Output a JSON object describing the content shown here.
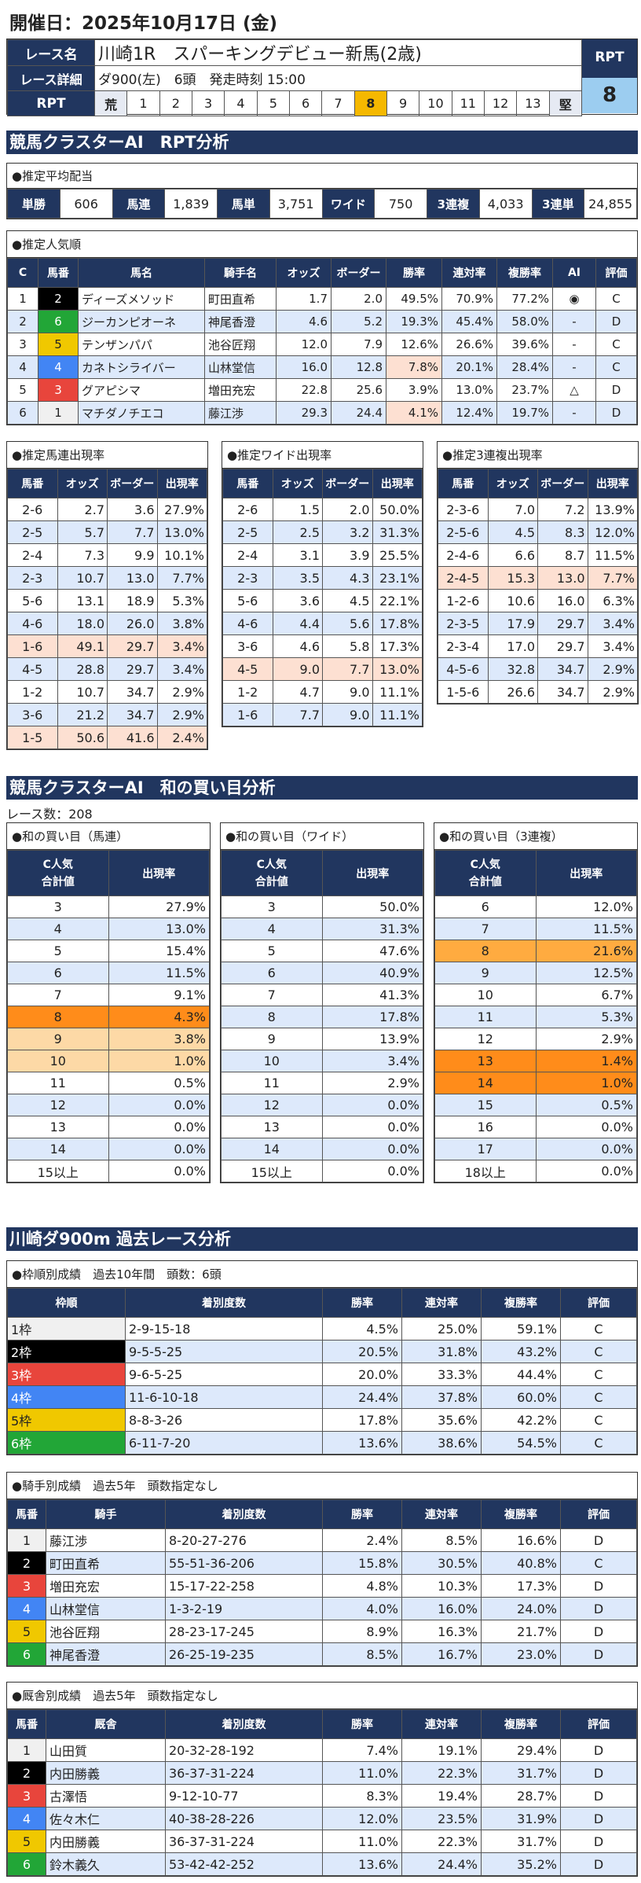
{
  "header": {
    "date": "開催日：2025年10月17日 (金)"
  },
  "race": {
    "name_label": "レース名",
    "name": "川崎1R　スパーキングデビュー新馬(2歳)",
    "detail_label": "レース詳細",
    "detail": "ダ900(左)　6頭　発走時刻 15:00",
    "rpt_label": "RPT",
    "scale": [
      "荒",
      "1",
      "2",
      "3",
      "4",
      "5",
      "6",
      "7",
      "8",
      "9",
      "10",
      "11",
      "12",
      "13",
      "堅"
    ],
    "rpt_selected": "8",
    "rpt_box_label": "RPT",
    "rpt_value": "8"
  },
  "sec1": {
    "title": "競馬クラスターAI　RPT分析"
  },
  "payout": {
    "title": "●推定平均配当",
    "items": [
      {
        "k": "単勝",
        "v": "606"
      },
      {
        "k": "馬連",
        "v": "1,839"
      },
      {
        "k": "馬単",
        "v": "3,751"
      },
      {
        "k": "ワイド",
        "v": "750"
      },
      {
        "k": "3連複",
        "v": "4,033"
      },
      {
        "k": "3連単",
        "v": "24,855"
      }
    ]
  },
  "popularity": {
    "title": "●推定人気順",
    "headers": [
      "C",
      "馬番",
      "馬名",
      "騎手名",
      "オッズ",
      "ボーダー",
      "勝率",
      "連対率",
      "複勝率",
      "AI",
      "評価"
    ],
    "rows": [
      [
        "1",
        "2",
        "ディーズメソッド",
        "町田直希",
        "1.7",
        "2.0",
        "49.5%",
        "70.9%",
        "77.2%",
        "◉",
        "C"
      ],
      [
        "2",
        "6",
        "ジーカンピオーネ",
        "神尾香澄",
        "4.6",
        "5.2",
        "19.3%",
        "45.4%",
        "58.0%",
        "-",
        "D"
      ],
      [
        "3",
        "5",
        "テンザンパパ",
        "池谷匠翔",
        "12.0",
        "7.9",
        "12.6%",
        "26.6%",
        "39.6%",
        "-",
        "C"
      ],
      [
        "4",
        "4",
        "カネトシライバー",
        "山林堂信",
        "16.0",
        "12.8",
        "7.8%",
        "20.1%",
        "28.4%",
        "-",
        "C"
      ],
      [
        "5",
        "3",
        "グアピシマ",
        "増田充宏",
        "22.8",
        "25.6",
        "3.9%",
        "13.0%",
        "23.7%",
        "△",
        "D"
      ],
      [
        "6",
        "1",
        "マチダノチエコ",
        "藤江渉",
        "29.3",
        "24.4",
        "4.1%",
        "12.4%",
        "19.7%",
        "-",
        "D"
      ]
    ],
    "salmon_win_rows": [
      3,
      5
    ]
  },
  "frame_colors": {
    "1": "#f0f0f0",
    "2": "#000000",
    "3": "#e8453c",
    "4": "#4285f4",
    "5": "#f0c800",
    "6": "#22a637"
  },
  "combo_tables": [
    {
      "title": "●推定馬連出現率",
      "headers": [
        "馬番",
        "オッズ",
        "ボーダー",
        "出現率"
      ],
      "rows": [
        [
          "2-6",
          "2.7",
          "3.6",
          "27.9%"
        ],
        [
          "2-5",
          "5.7",
          "7.7",
          "13.0%"
        ],
        [
          "2-4",
          "7.3",
          "9.9",
          "10.1%"
        ],
        [
          "2-3",
          "10.7",
          "13.0",
          "7.7%"
        ],
        [
          "5-6",
          "13.1",
          "18.9",
          "5.3%"
        ],
        [
          "4-6",
          "18.0",
          "26.0",
          "3.8%"
        ],
        [
          "1-6",
          "49.1",
          "29.7",
          "3.4%",
          "salmon"
        ],
        [
          "4-5",
          "28.8",
          "29.7",
          "3.4%"
        ],
        [
          "1-2",
          "10.7",
          "34.7",
          "2.9%"
        ],
        [
          "3-6",
          "21.2",
          "34.7",
          "2.9%"
        ],
        [
          "1-5",
          "50.6",
          "41.6",
          "2.4%",
          "salmon"
        ]
      ]
    },
    {
      "title": "●推定ワイド出現率",
      "headers": [
        "馬番",
        "オッズ",
        "ボーダー",
        "出現率"
      ],
      "rows": [
        [
          "2-6",
          "1.5",
          "2.0",
          "50.0%"
        ],
        [
          "2-5",
          "2.5",
          "3.2",
          "31.3%"
        ],
        [
          "2-4",
          "3.1",
          "3.9",
          "25.5%"
        ],
        [
          "2-3",
          "3.5",
          "4.3",
          "23.1%"
        ],
        [
          "5-6",
          "3.6",
          "4.5",
          "22.1%"
        ],
        [
          "4-6",
          "4.4",
          "5.6",
          "17.8%"
        ],
        [
          "3-6",
          "4.6",
          "5.8",
          "17.3%"
        ],
        [
          "4-5",
          "9.0",
          "7.7",
          "13.0%",
          "salmon"
        ],
        [
          "1-2",
          "4.7",
          "9.0",
          "11.1%"
        ],
        [
          "1-6",
          "7.7",
          "9.0",
          "11.1%"
        ]
      ]
    },
    {
      "title": "●推定3連複出現率",
      "headers": [
        "馬番",
        "オッズ",
        "ボーダー",
        "出現率"
      ],
      "rows": [
        [
          "2-3-6",
          "7.0",
          "7.2",
          "13.9%"
        ],
        [
          "2-5-6",
          "4.5",
          "8.3",
          "12.0%"
        ],
        [
          "2-4-6",
          "6.6",
          "8.7",
          "11.5%"
        ],
        [
          "2-4-5",
          "15.3",
          "13.0",
          "7.7%",
          "salmon"
        ],
        [
          "1-2-6",
          "10.6",
          "16.0",
          "6.3%"
        ],
        [
          "2-3-5",
          "17.9",
          "29.7",
          "3.4%"
        ],
        [
          "2-3-4",
          "17.0",
          "29.7",
          "3.4%"
        ],
        [
          "4-5-6",
          "32.8",
          "34.7",
          "2.9%"
        ],
        [
          "1-5-6",
          "26.6",
          "34.7",
          "2.9%"
        ]
      ]
    }
  ],
  "sec2": {
    "title": "競馬クラスターAI　和の買い目分析",
    "race_count": "レース数：208"
  },
  "sum_tables": [
    {
      "title": "●和の買い目（馬連）",
      "h1a": "C人気",
      "h1b": "合計値",
      "h2": "出現率",
      "rows": [
        [
          "3",
          "27.9%"
        ],
        [
          "4",
          "13.0%"
        ],
        [
          "5",
          "15.4%"
        ],
        [
          "6",
          "11.5%"
        ],
        [
          "7",
          "9.1%"
        ],
        [
          "8",
          "4.3%",
          "orange"
        ],
        [
          "9",
          "3.8%",
          "lorange"
        ],
        [
          "10",
          "1.0%",
          "lorange"
        ],
        [
          "11",
          "0.5%"
        ],
        [
          "12",
          "0.0%"
        ],
        [
          "13",
          "0.0%"
        ],
        [
          "14",
          "0.0%"
        ],
        [
          "15以上",
          "0.0%"
        ]
      ]
    },
    {
      "title": "●和の買い目（ワイド）",
      "h1a": "C人気",
      "h1b": "合計値",
      "h2": "出現率",
      "rows": [
        [
          "3",
          "50.0%"
        ],
        [
          "4",
          "31.3%"
        ],
        [
          "5",
          "47.6%"
        ],
        [
          "6",
          "40.9%"
        ],
        [
          "7",
          "41.3%"
        ],
        [
          "8",
          "17.8%"
        ],
        [
          "9",
          "13.9%"
        ],
        [
          "10",
          "3.4%"
        ],
        [
          "11",
          "2.9%"
        ],
        [
          "12",
          "0.0%"
        ],
        [
          "13",
          "0.0%"
        ],
        [
          "14",
          "0.0%"
        ],
        [
          "15以上",
          "0.0%"
        ]
      ]
    },
    {
      "title": "●和の買い目（3連複）",
      "h1a": "C人気",
      "h1b": "合計値",
      "h2": "出現率",
      "rows": [
        [
          "6",
          "12.0%"
        ],
        [
          "7",
          "11.5%"
        ],
        [
          "8",
          "21.6%",
          "morange"
        ],
        [
          "9",
          "12.5%"
        ],
        [
          "10",
          "6.7%"
        ],
        [
          "11",
          "5.3%"
        ],
        [
          "12",
          "2.9%"
        ],
        [
          "13",
          "1.4%",
          "orange"
        ],
        [
          "14",
          "1.0%",
          "orange"
        ],
        [
          "15",
          "0.5%"
        ],
        [
          "16",
          "0.0%"
        ],
        [
          "17",
          "0.0%"
        ],
        [
          "18以上",
          "0.0%"
        ]
      ]
    }
  ],
  "sec3": {
    "title": "川崎ダ900m 過去レース分析"
  },
  "frame_table": {
    "title": "●枠順別成績　過去10年間　頭数：6頭",
    "headers": [
      "枠順",
      "着別度数",
      "勝率",
      "連対率",
      "複勝率",
      "評価"
    ],
    "rows": [
      [
        "1枠",
        "2-9-15-18",
        "4.5%",
        "25.0%",
        "59.1%",
        "C"
      ],
      [
        "2枠",
        "9-5-5-25",
        "20.5%",
        "31.8%",
        "43.2%",
        "C"
      ],
      [
        "3枠",
        "9-6-5-25",
        "20.0%",
        "33.3%",
        "44.4%",
        "C"
      ],
      [
        "4枠",
        "11-6-10-18",
        "24.4%",
        "37.8%",
        "60.0%",
        "C"
      ],
      [
        "5枠",
        "8-8-3-26",
        "17.8%",
        "35.6%",
        "42.2%",
        "C"
      ],
      [
        "6枠",
        "6-11-7-20",
        "13.6%",
        "38.6%",
        "54.5%",
        "C"
      ]
    ]
  },
  "jockey_table": {
    "title": "●騎手別成績　過去5年　頭数指定なし",
    "headers": [
      "馬番",
      "騎手",
      "着別度数",
      "勝率",
      "連対率",
      "複勝率",
      "評価"
    ],
    "rows": [
      [
        "1",
        "藤江渉",
        "8-20-27-276",
        "2.4%",
        "8.5%",
        "16.6%",
        "D"
      ],
      [
        "2",
        "町田直希",
        "55-51-36-206",
        "15.8%",
        "30.5%",
        "40.8%",
        "C"
      ],
      [
        "3",
        "増田充宏",
        "15-17-22-258",
        "4.8%",
        "10.3%",
        "17.3%",
        "D"
      ],
      [
        "4",
        "山林堂信",
        "1-3-2-19",
        "4.0%",
        "16.0%",
        "24.0%",
        "D"
      ],
      [
        "5",
        "池谷匠翔",
        "28-23-17-245",
        "8.9%",
        "16.3%",
        "21.7%",
        "D"
      ],
      [
        "6",
        "神尾香澄",
        "26-25-19-235",
        "8.5%",
        "16.7%",
        "23.0%",
        "D"
      ]
    ]
  },
  "trainer_table": {
    "title": "●厩舎別成績　過去5年　頭数指定なし",
    "headers": [
      "馬番",
      "厩舎",
      "着別度数",
      "勝率",
      "連対率",
      "複勝率",
      "評価"
    ],
    "rows": [
      [
        "1",
        "山田質",
        "20-32-28-192",
        "7.4%",
        "19.1%",
        "29.4%",
        "D"
      ],
      [
        "2",
        "内田勝義",
        "36-37-31-224",
        "11.0%",
        "22.3%",
        "31.7%",
        "D"
      ],
      [
        "3",
        "古澤悟",
        "9-12-10-77",
        "8.3%",
        "19.4%",
        "28.7%",
        "D"
      ],
      [
        "4",
        "佐々木仁",
        "40-38-28-226",
        "12.0%",
        "23.5%",
        "31.9%",
        "D"
      ],
      [
        "5",
        "内田勝義",
        "36-37-31-224",
        "11.0%",
        "22.3%",
        "31.7%",
        "D"
      ],
      [
        "6",
        "鈴木義久",
        "53-42-42-252",
        "13.6%",
        "24.4%",
        "35.2%",
        "D"
      ]
    ]
  }
}
